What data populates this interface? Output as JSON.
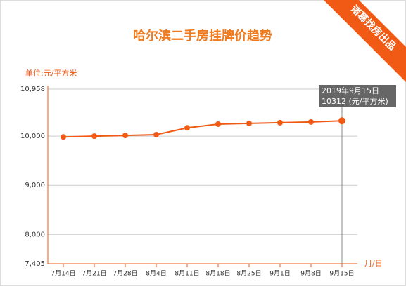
{
  "chart_data": {
    "type": "line",
    "title": "哈尔滨二手房挂牌价趋势",
    "badge": "诸葛找房出品",
    "y_label": "单位:元/平方米",
    "x_label": "月/日",
    "categories": [
      "7月14日",
      "7月21日",
      "7月28日",
      "8月4日",
      "8月11日",
      "8月18日",
      "8月25日",
      "9月1日",
      "9月8日",
      "9月15日"
    ],
    "values": [
      9985,
      10000,
      10015,
      10030,
      10170,
      10245,
      10260,
      10275,
      10290,
      10312
    ],
    "color": "#f05a14",
    "ylim": [
      7405,
      10958
    ],
    "yticks": [
      {
        "value": 7405,
        "label": "7,405"
      },
      {
        "value": 8000,
        "label": "8,000"
      },
      {
        "value": 9000,
        "label": "9,000"
      },
      {
        "value": 10000,
        "label": "10,000"
      },
      {
        "value": 10958,
        "label": "10,958"
      }
    ],
    "grid": true,
    "tooltip": {
      "title": "2019年9月15日",
      "label": "10312 (元/平方米)"
    }
  }
}
